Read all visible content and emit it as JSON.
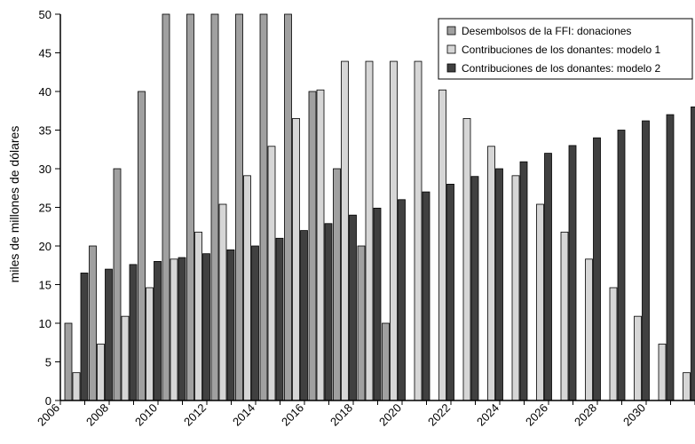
{
  "chart_data": {
    "type": "bar",
    "title": "",
    "xlabel": "",
    "ylabel": "miles de millones de dólares",
    "ylim": [
      0,
      50
    ],
    "yticks": [
      0,
      5,
      10,
      15,
      20,
      25,
      30,
      35,
      40,
      45,
      50
    ],
    "grid": false,
    "legend_position": "top-right",
    "categories": [
      "2006",
      "2007",
      "2008",
      "2009",
      "2010",
      "2011",
      "2012",
      "2013",
      "2014",
      "2015",
      "2016",
      "2017",
      "2018",
      "2019",
      "2020",
      "2021",
      "2022",
      "2023",
      "2024",
      "2025",
      "2026",
      "2027",
      "2028",
      "2029",
      "2030",
      "2031"
    ],
    "x_tick_labels": [
      "2006",
      "2008",
      "2010",
      "2012",
      "2014",
      "2016",
      "2018",
      "2020",
      "2022",
      "2024",
      "2026",
      "2028",
      "2030"
    ],
    "series": [
      {
        "name": "Desembolsos de la FFI: donaciones",
        "color": "#a0a0a0",
        "values": [
          10,
          20,
          30,
          40,
          50,
          50,
          50,
          50,
          50,
          50,
          40,
          30,
          20,
          10,
          0,
          0,
          0,
          0,
          0,
          0,
          0,
          0,
          0,
          0,
          0,
          0
        ]
      },
      {
        "name": "Contribuciones de los donantes: modelo 1",
        "color": "#d6d6d6",
        "values": [
          3.6,
          7.3,
          10.9,
          14.6,
          18.3,
          21.8,
          25.4,
          29.1,
          32.9,
          36.5,
          40.2,
          43.9,
          43.9,
          43.9,
          43.9,
          40.2,
          36.5,
          32.9,
          29.1,
          25.4,
          21.8,
          18.3,
          14.6,
          10.9,
          7.3,
          3.6
        ]
      },
      {
        "name": "Contribuciones de los donantes: modelo 2",
        "color": "#404040",
        "values": [
          16.5,
          17,
          17.6,
          18,
          18.5,
          19,
          19.5,
          20,
          21,
          22,
          22.9,
          24,
          24.9,
          26,
          27,
          28,
          29,
          30,
          30.9,
          32,
          33,
          34,
          35,
          36.2,
          37,
          38
        ]
      }
    ]
  }
}
